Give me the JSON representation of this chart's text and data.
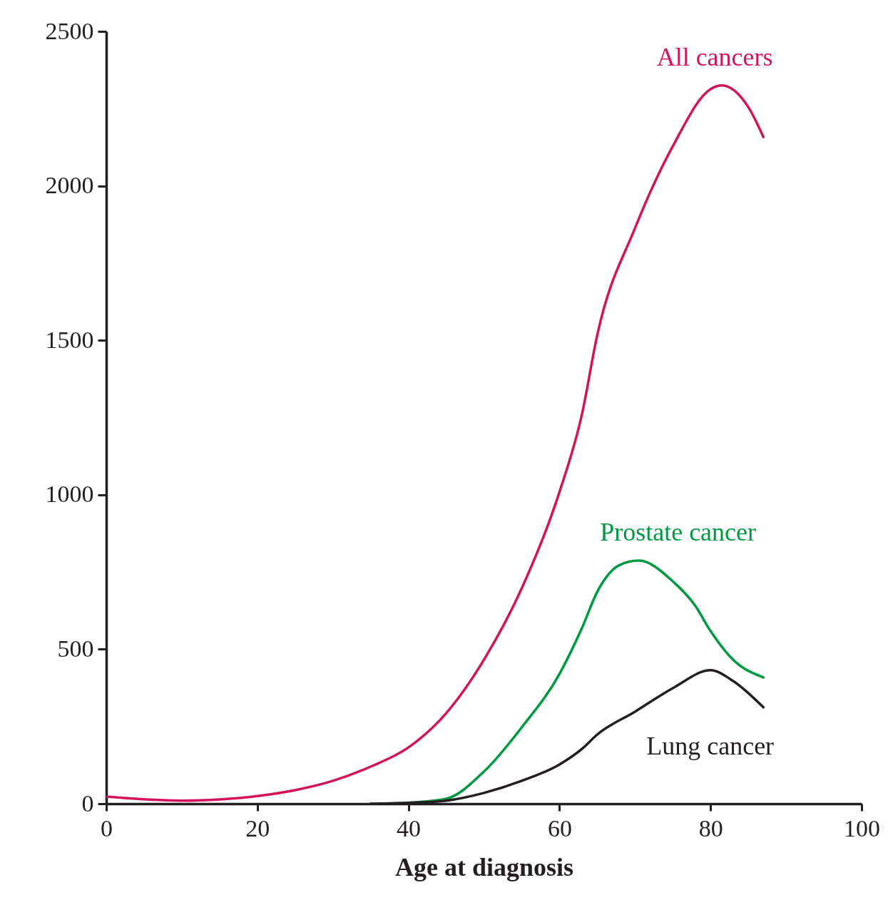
{
  "chart_data": {
    "type": "line",
    "xlabel": "Age at diagnosis",
    "xlim": [
      0,
      100
    ],
    "xticks": [
      0,
      20,
      40,
      60,
      80,
      100
    ],
    "ylim": [
      0,
      2500
    ],
    "yticks": [
      0,
      500,
      1000,
      1500,
      2000,
      2500
    ],
    "grid": false,
    "x": [
      0,
      10,
      15,
      20,
      25,
      30,
      35,
      40,
      45,
      50,
      55,
      60,
      63,
      65,
      70,
      75,
      80,
      81.5,
      85,
      87
    ],
    "series": [
      {
        "name": "All cancers",
        "color": "#d4145a",
        "values": [
          23,
          10,
          14,
          25,
          44,
          74,
          120,
          182,
          293,
          466,
          697,
          1009,
          1263,
          1517,
          1863,
          2128,
          2313,
          2325,
          2255,
          2158
        ]
      },
      {
        "name": "Prostate cancer",
        "color": "#009a44",
        "x": [
          35,
          40,
          45,
          50,
          55,
          60,
          63,
          65,
          68,
          70.5,
          75,
          78,
          80,
          83,
          87
        ],
        "values": [
          0,
          3,
          16,
          104,
          247,
          420,
          570,
          686,
          773,
          787,
          720,
          640,
          559,
          466,
          409
        ]
      },
      {
        "name": "Lung cancer",
        "color": "#231f20",
        "x": [
          35,
          40,
          45,
          50,
          55,
          60,
          63,
          65,
          70,
          75,
          80,
          83,
          87
        ],
        "values": [
          0,
          3,
          10,
          35,
          74,
          127,
          178,
          224,
          298,
          374,
          432,
          397,
          312
        ]
      }
    ]
  }
}
